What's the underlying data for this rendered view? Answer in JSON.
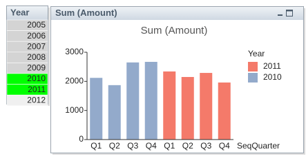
{
  "listbox": {
    "title": "Year",
    "items": [
      {
        "label": "2005",
        "color": "#d4d4d4"
      },
      {
        "label": "2006",
        "color": "#d4d4d4"
      },
      {
        "label": "2007",
        "color": "#d4d4d4"
      },
      {
        "label": "2008",
        "color": "#d4d4d4"
      },
      {
        "label": "2009",
        "color": "#d4d4d4"
      },
      {
        "label": "2010",
        "color": "#00ff00"
      },
      {
        "label": "2011",
        "color": "#00ff00"
      },
      {
        "label": "2012",
        "color": "#f0f0f0"
      }
    ]
  },
  "window_title": "Sum (Amount)",
  "chart_data": {
    "type": "bar",
    "title": "Sum (Amount)",
    "x_label": "SeqQuarter",
    "legend_title": "Year",
    "categories": [
      "Q1",
      "Q2",
      "Q3",
      "Q4",
      "Q1",
      "Q2",
      "Q3",
      "Q4"
    ],
    "series": [
      {
        "name": "2011",
        "color": "#f47a6a",
        "values": [
          null,
          null,
          null,
          null,
          2340,
          2150,
          2290,
          1960
        ]
      },
      {
        "name": "2010",
        "color": "#93aacb",
        "values": [
          2120,
          1870,
          2650,
          2670,
          null,
          null,
          null,
          null
        ]
      }
    ],
    "ylim": [
      0,
      3000
    ],
    "yticks": [
      0,
      1000,
      2000,
      3000
    ],
    "grid": false,
    "legend": "right"
  }
}
